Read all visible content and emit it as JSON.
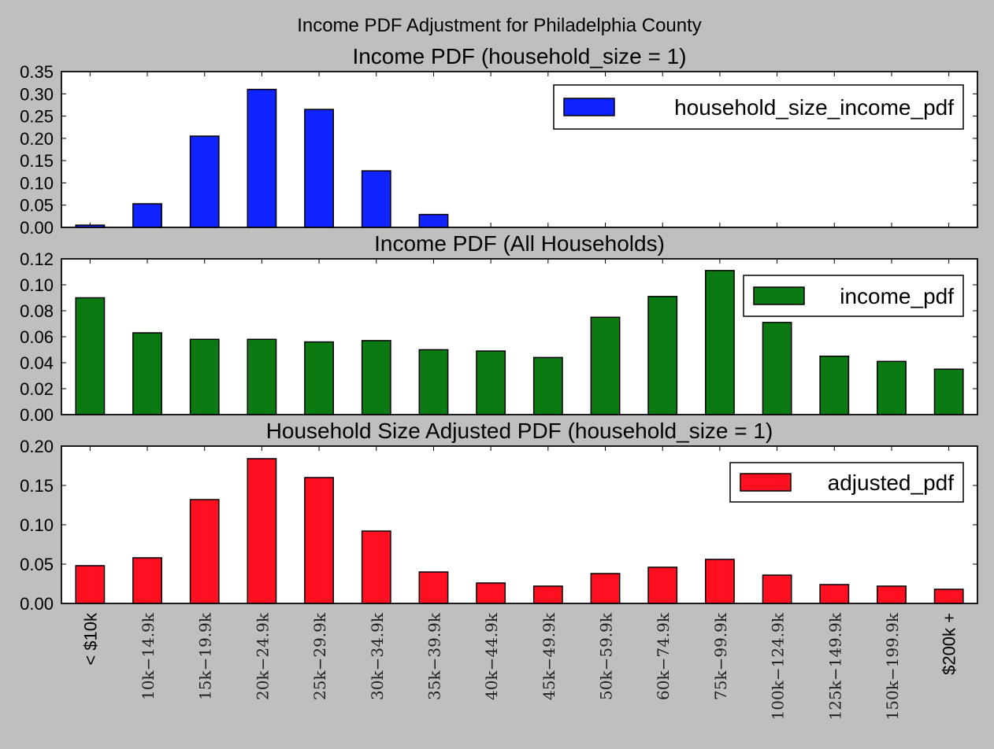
{
  "figure_title": "Income PDF Adjustment for Philadelphia County",
  "colors": {
    "background": "#bfbfbf",
    "plot_background": "#ffffff",
    "blue": "#0f24ff",
    "green": "#0b7a12",
    "red": "#ff0f20"
  },
  "chart_data": [
    {
      "type": "bar",
      "title": "Income PDF (household_size = 1)",
      "legend": {
        "label": "household_size_income_pdf",
        "placement": "top-right"
      },
      "categories": [
        "< $10k",
        "$10k-$14.9k",
        "$15k-$19.9k",
        "$20k-$24.9k",
        "$25k-$29.9k",
        "$30k-$34.9k",
        "$35k-$39.9k",
        "$40k-$44.9k",
        "$45k-$49.9k",
        "$50k-$59.9k",
        "$60k-$74.9k",
        "$75k-$99.9k",
        "$100k-$124.9k",
        "$125k-$149.9k",
        "$150k-$199.9k",
        "$200k +"
      ],
      "values": [
        0.005,
        0.053,
        0.205,
        0.31,
        0.265,
        0.127,
        0.029,
        0.0,
        0.0,
        0.0,
        0.0,
        0.0,
        0.0,
        0.0,
        0.0,
        0.0
      ],
      "ylim": [
        0,
        0.35
      ],
      "yticks": [
        "0.00",
        "0.05",
        "0.10",
        "0.15",
        "0.20",
        "0.25",
        "0.30",
        "0.35"
      ],
      "color": "#0f24ff",
      "grid": false
    },
    {
      "type": "bar",
      "title": "Income PDF (All Households)",
      "legend": {
        "label": "income_pdf",
        "placement": "top-right"
      },
      "categories": [
        "< $10k",
        "$10k-$14.9k",
        "$15k-$19.9k",
        "$20k-$24.9k",
        "$25k-$29.9k",
        "$30k-$34.9k",
        "$35k-$39.9k",
        "$40k-$44.9k",
        "$45k-$49.9k",
        "$50k-$59.9k",
        "$60k-$74.9k",
        "$75k-$99.9k",
        "$100k-$124.9k",
        "$125k-$149.9k",
        "$150k-$199.9k",
        "$200k +"
      ],
      "values": [
        0.09,
        0.063,
        0.058,
        0.058,
        0.056,
        0.057,
        0.05,
        0.049,
        0.044,
        0.075,
        0.091,
        0.111,
        0.071,
        0.045,
        0.041,
        0.035
      ],
      "ylim": [
        0,
        0.12
      ],
      "yticks": [
        "0.00",
        "0.02",
        "0.04",
        "0.06",
        "0.08",
        "0.10",
        "0.12"
      ],
      "color": "#0b7a12",
      "grid": false
    },
    {
      "type": "bar",
      "title": "Household Size Adjusted PDF (household_size = 1)",
      "legend": {
        "label": "adjusted_pdf",
        "placement": "top-right"
      },
      "categories": [
        "< $10k",
        "$10k-$14.9k",
        "$15k-$19.9k",
        "$20k-$24.9k",
        "$25k-$29.9k",
        "$30k-$34.9k",
        "$35k-$39.9k",
        "$40k-$44.9k",
        "$45k-$49.9k",
        "$50k-$59.9k",
        "$60k-$74.9k",
        "$75k-$99.9k",
        "$100k-$124.9k",
        "$125k-$149.9k",
        "$150k-$199.9k",
        "$200k +"
      ],
      "values": [
        0.048,
        0.058,
        0.132,
        0.184,
        0.16,
        0.092,
        0.04,
        0.026,
        0.022,
        0.038,
        0.046,
        0.056,
        0.036,
        0.024,
        0.022,
        0.018
      ],
      "ylim": [
        0,
        0.2
      ],
      "yticks": [
        "0.00",
        "0.05",
        "0.10",
        "0.15",
        "0.20"
      ],
      "color": "#ff0f20",
      "grid": false
    }
  ],
  "xtick_labels": [
    {
      "text": "< $10k",
      "math": false
    },
    {
      "text": "10k−14.9k",
      "math": true
    },
    {
      "text": "15k−19.9k",
      "math": true
    },
    {
      "text": "20k−24.9k",
      "math": true
    },
    {
      "text": "25k−29.9k",
      "math": true
    },
    {
      "text": "30k−34.9k",
      "math": true
    },
    {
      "text": "35k−39.9k",
      "math": true
    },
    {
      "text": "40k−44.9k",
      "math": true
    },
    {
      "text": "45k−49.9k",
      "math": true
    },
    {
      "text": "50k−59.9k",
      "math": true
    },
    {
      "text": "60k−74.9k",
      "math": true
    },
    {
      "text": "75k−99.9k",
      "math": true
    },
    {
      "text": "100k−124.9k",
      "math": true
    },
    {
      "text": "125k−149.9k",
      "math": true
    },
    {
      "text": "150k−199.9k",
      "math": true
    },
    {
      "text": "$200k +",
      "math": false
    }
  ]
}
